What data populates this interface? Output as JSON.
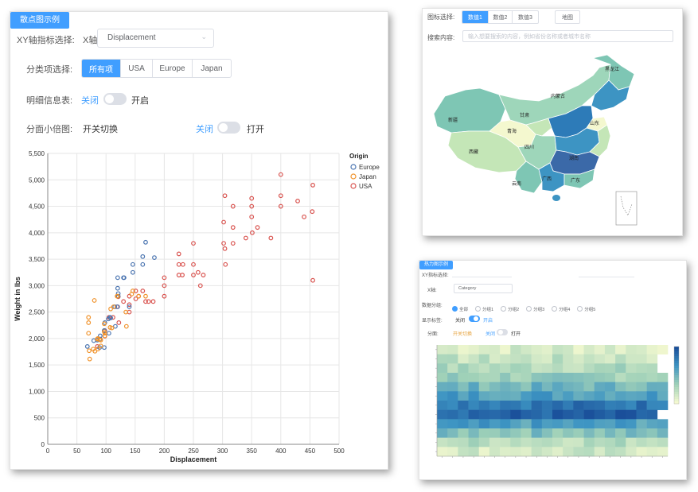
{
  "scatter_panel": {
    "tag": "散点图示例",
    "xy_label": "XY轴指标选择:",
    "x_prefix": "X轴",
    "x_select_value": "Displacement",
    "country_label": "分类项选择:",
    "country_options": [
      "所有项",
      "USA",
      "Europe",
      "Japan"
    ],
    "country_active": 0,
    "info_label": "明细信息表:",
    "info_off": "关闭",
    "info_on": "开启",
    "small_label": "分面小倍图:",
    "small_value": "开关切换",
    "small_off": "关闭",
    "small_on": "打开"
  },
  "map_panel": {
    "type_label": "图标选择:",
    "tabs": [
      "数值1",
      "数值2",
      "数值3",
      "地图"
    ],
    "active_tab": 0,
    "search_label": "搜索内容:",
    "search_placeholder": "输入想要搜索的内容，例如省份名称或者城市名称",
    "provinces": [
      "新疆",
      "西藏",
      "青海",
      "甘肃",
      "四川",
      "云南",
      "广西",
      "内蒙古",
      "黑龙江",
      "湖南",
      "广东",
      "山东"
    ]
  },
  "heatmap_panel": {
    "tag": "热力图示例",
    "xy_label": "XY指标选择:",
    "x_select": "Category",
    "group_label": "数据分组:",
    "group_options": [
      "全部",
      "分组1",
      "分组2",
      "分组3",
      "分组4",
      "分组5"
    ],
    "toggle_label": "显示标签:",
    "toggle_off": "关闭",
    "toggle_on": "开启",
    "facet_label": "分面:",
    "facet_value": "开关切换",
    "facet_off": "关闭",
    "facet_on": "打开"
  },
  "colors": {
    "accent": "#409eff",
    "usa": "#d9534f",
    "europe": "#4a74b0",
    "japan": "#f0922a"
  },
  "chart_data": [
    {
      "type": "scatter",
      "xlabel": "Displacement",
      "ylabel": "Weight in lbs",
      "xlim": [
        0,
        500
      ],
      "ylim": [
        0,
        5500
      ],
      "xticks": [
        0,
        50,
        100,
        150,
        200,
        250,
        300,
        350,
        400,
        450,
        500
      ],
      "yticks": [
        0,
        500,
        1000,
        1500,
        2000,
        2500,
        3000,
        3500,
        4000,
        4500,
        5000,
        5500
      ],
      "xtick_labels": [
        "0",
        "50",
        "100",
        "150",
        "200",
        "250",
        "300",
        "350",
        "400",
        "450",
        "500"
      ],
      "ytick_labels": [
        "0",
        "500",
        "1,000",
        "1,500",
        "2,000",
        "2,500",
        "3,000",
        "3,500",
        "4,000",
        "4,500",
        "5,000",
        "5,500"
      ],
      "legend_title": "Origin",
      "legend_position": "top-right",
      "grid": true,
      "series": [
        {
          "name": "Europe",
          "color": "#4a74b0",
          "points": [
            [
              68,
              1850
            ],
            [
              79,
              1960
            ],
            [
              90,
              2050
            ],
            [
              97,
              2150
            ],
            [
              97,
              1830
            ],
            [
              98,
              2300
            ],
            [
              104,
              2370
            ],
            [
              107,
              2400
            ],
            [
              108,
              2390
            ],
            [
              115,
              2600
            ],
            [
              120,
              2600
            ],
            [
              121,
              2800
            ],
            [
              121,
              2850
            ],
            [
              116,
              2230
            ],
            [
              120,
              2950
            ],
            [
              120,
              3150
            ],
            [
              130,
              3150
            ],
            [
              131,
              3150
            ],
            [
              140,
              2600
            ],
            [
              146,
              3250
            ],
            [
              146,
              3400
            ],
            [
              163,
              3400
            ],
            [
              163,
              3550
            ],
            [
              168,
              3820
            ],
            [
              183,
              3530
            ],
            [
              97,
              2150
            ],
            [
              89,
              1830
            ],
            [
              90,
              1990
            ],
            [
              105,
              2100
            ],
            [
              85,
              1970
            ]
          ]
        },
        {
          "name": "Japan",
          "color": "#f0922a",
          "points": [
            [
              70,
              2400
            ],
            [
              70,
              2300
            ],
            [
              70,
              2100
            ],
            [
              71,
              1770
            ],
            [
              72,
              1613
            ],
            [
              78,
              1800
            ],
            [
              80,
              2720
            ],
            [
              81,
              1760
            ],
            [
              85,
              1990
            ],
            [
              86,
              1800
            ],
            [
              86,
              2000
            ],
            [
              89,
              1980
            ],
            [
              91,
              1970
            ],
            [
              91,
              1860
            ],
            [
              97,
              2130
            ],
            [
              97,
              2280
            ],
            [
              98,
              2100
            ],
            [
              98,
              2050
            ],
            [
              107,
              2210
            ],
            [
              108,
              2560
            ],
            [
              110,
              2200
            ],
            [
              113,
              2600
            ],
            [
              119,
              2800
            ],
            [
              120,
              2800
            ],
            [
              134,
              2500
            ],
            [
              135,
              2230
            ],
            [
              144,
              2840
            ],
            [
              146,
              2900
            ],
            [
              156,
              2800
            ],
            [
              168,
              2800
            ]
          ]
        },
        {
          "name": "USA",
          "color": "#d9534f",
          "points": [
            [
              85,
              1850
            ],
            [
              98,
              2045
            ],
            [
              98,
              2150
            ],
            [
              105,
              2400
            ],
            [
              112,
              2400
            ],
            [
              119,
              2600
            ],
            [
              121,
              2790
            ],
            [
              122,
              2300
            ],
            [
              130,
              2700
            ],
            [
              140,
              2500
            ],
            [
              140,
              2640
            ],
            [
              140,
              2800
            ],
            [
              151,
              2750
            ],
            [
              151,
              2900
            ],
            [
              156,
              2800
            ],
            [
              163,
              2900
            ],
            [
              168,
              2700
            ],
            [
              173,
              2700
            ],
            [
              181,
              2700
            ],
            [
              200,
              2800
            ],
            [
              200,
              3000
            ],
            [
              200,
              3150
            ],
            [
              225,
              3200
            ],
            [
              225,
              3400
            ],
            [
              225,
              3600
            ],
            [
              231,
              3200
            ],
            [
              232,
              3400
            ],
            [
              250,
              3200
            ],
            [
              250,
              3400
            ],
            [
              250,
              3800
            ],
            [
              258,
              3250
            ],
            [
              262,
              3000
            ],
            [
              267,
              3200
            ],
            [
              302,
              3800
            ],
            [
              302,
              4200
            ],
            [
              304,
              3700
            ],
            [
              305,
              3400
            ],
            [
              318,
              4100
            ],
            [
              318,
              4500
            ],
            [
              340,
              3900
            ],
            [
              350,
              4300
            ],
            [
              350,
              4500
            ],
            [
              351,
              4000
            ],
            [
              360,
              4100
            ],
            [
              383,
              3900
            ],
            [
              400,
              4500
            ],
            [
              400,
              4700
            ],
            [
              400,
              5100
            ],
            [
              429,
              4600
            ],
            [
              440,
              4300
            ],
            [
              454,
              4400
            ],
            [
              455,
              3100
            ],
            [
              455,
              4900
            ],
            [
              304,
              4700
            ],
            [
              318,
              3800
            ],
            [
              350,
              4650
            ]
          ]
        }
      ]
    },
    {
      "type": "heatmap",
      "xlabel": "",
      "ylabel": "",
      "rows": 12,
      "cols": 22,
      "colorscale": [
        "#f4f9d0",
        "#9ed0b8",
        "#3d94c3",
        "#1a4f9a"
      ]
    }
  ]
}
